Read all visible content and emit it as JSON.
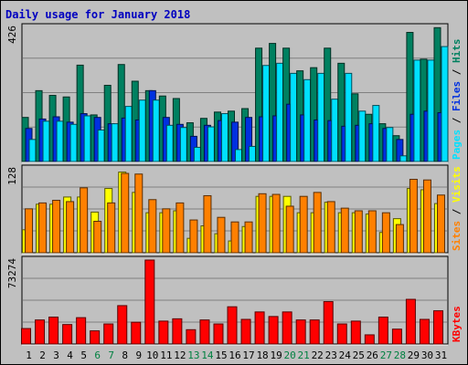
{
  "chart_data": {
    "type": "bar",
    "title": "Daily usage for January 2018",
    "categories": [
      "1",
      "2",
      "3",
      "4",
      "5",
      "6",
      "7",
      "8",
      "9",
      "10",
      "11",
      "12",
      "13",
      "14",
      "15",
      "16",
      "17",
      "18",
      "19",
      "20",
      "21",
      "22",
      "23",
      "24",
      "25",
      "26",
      "27",
      "28",
      "29",
      "30",
      "31"
    ],
    "weekend_days": [
      "6",
      "7",
      "13",
      "14",
      "20",
      "21",
      "27",
      "28"
    ],
    "panels": [
      {
        "id": "hits-files-pages",
        "max_label": "426",
        "ylim": [
          0,
          426
        ],
        "series": [
          {
            "name": "Hits",
            "color": "#008060",
            "values": [
              140,
              225,
              210,
              205,
              306,
              148,
              242,
              308,
              255,
              225,
              208,
              200,
              123,
              137,
              157,
              160,
              168,
              360,
              375,
              360,
              288,
              298,
              360,
              312,
              215,
              150,
              120,
              82,
              410,
              325,
              425
            ]
          },
          {
            "name": "Files",
            "color": "#0030e0",
            "values": [
              105,
              135,
              142,
              125,
              152,
              140,
              120,
              138,
              132,
              225,
              140,
              118,
              80,
              115,
              130,
              125,
              140,
              142,
              145,
              182,
              148,
              132,
              130,
              112,
              115,
              120,
              105,
              70,
              150,
              160,
              155
            ]
          },
          {
            "name": "Pages",
            "color": "#00e0ff",
            "values": [
              70,
              128,
              128,
              118,
              145,
              100,
              120,
              175,
              195,
              195,
              115,
              108,
              45,
              110,
              152,
              38,
              48,
              305,
              312,
              280,
              260,
              280,
              198,
              280,
              160,
              178,
              108,
              18,
              322,
              322,
              365
            ]
          }
        ]
      },
      {
        "id": "visits-sites",
        "max_label": "128",
        "ylim": [
          0,
          128
        ],
        "series": [
          {
            "name": "Visits",
            "color": "#ffff00",
            "values": [
              35,
              74,
              74,
              85,
              85,
              62,
              98,
              123,
              92,
              61,
              61,
              64,
              22,
              41,
              29,
              18,
              40,
              86,
              86,
              86,
              61,
              61,
              77,
              61,
              61,
              59,
              31,
              52,
              98,
              96,
              75
            ]
          },
          {
            "name": "Sites",
            "color": "#ff8000",
            "values": [
              67,
              76,
              80,
              78,
              99,
              48,
              76,
              121,
              120,
              81,
              67,
              76,
              50,
              87,
              54,
              47,
              47,
              90,
              89,
              71,
              86,
              92,
              78,
              68,
              64,
              64,
              61,
              43,
              112,
              111,
              88
            ]
          }
        ]
      },
      {
        "id": "kbytes",
        "max_label": "73274",
        "ylim": [
          0,
          73274
        ],
        "series": [
          {
            "name": "KBytes",
            "color": "#ff0000",
            "values": [
              13500,
              21000,
              23500,
              17000,
              23000,
              11500,
              17500,
              33500,
              19000,
              73274,
              20000,
              22000,
              12500,
              21000,
              17500,
              32500,
              21500,
              28000,
              24000,
              28000,
              21000,
              21000,
              37000,
              17500,
              20000,
              8000,
              23500,
              13000,
              39000,
              21500,
              29000
            ]
          }
        ]
      }
    ],
    "grid": true,
    "legend": "right, vertical text per panel"
  }
}
